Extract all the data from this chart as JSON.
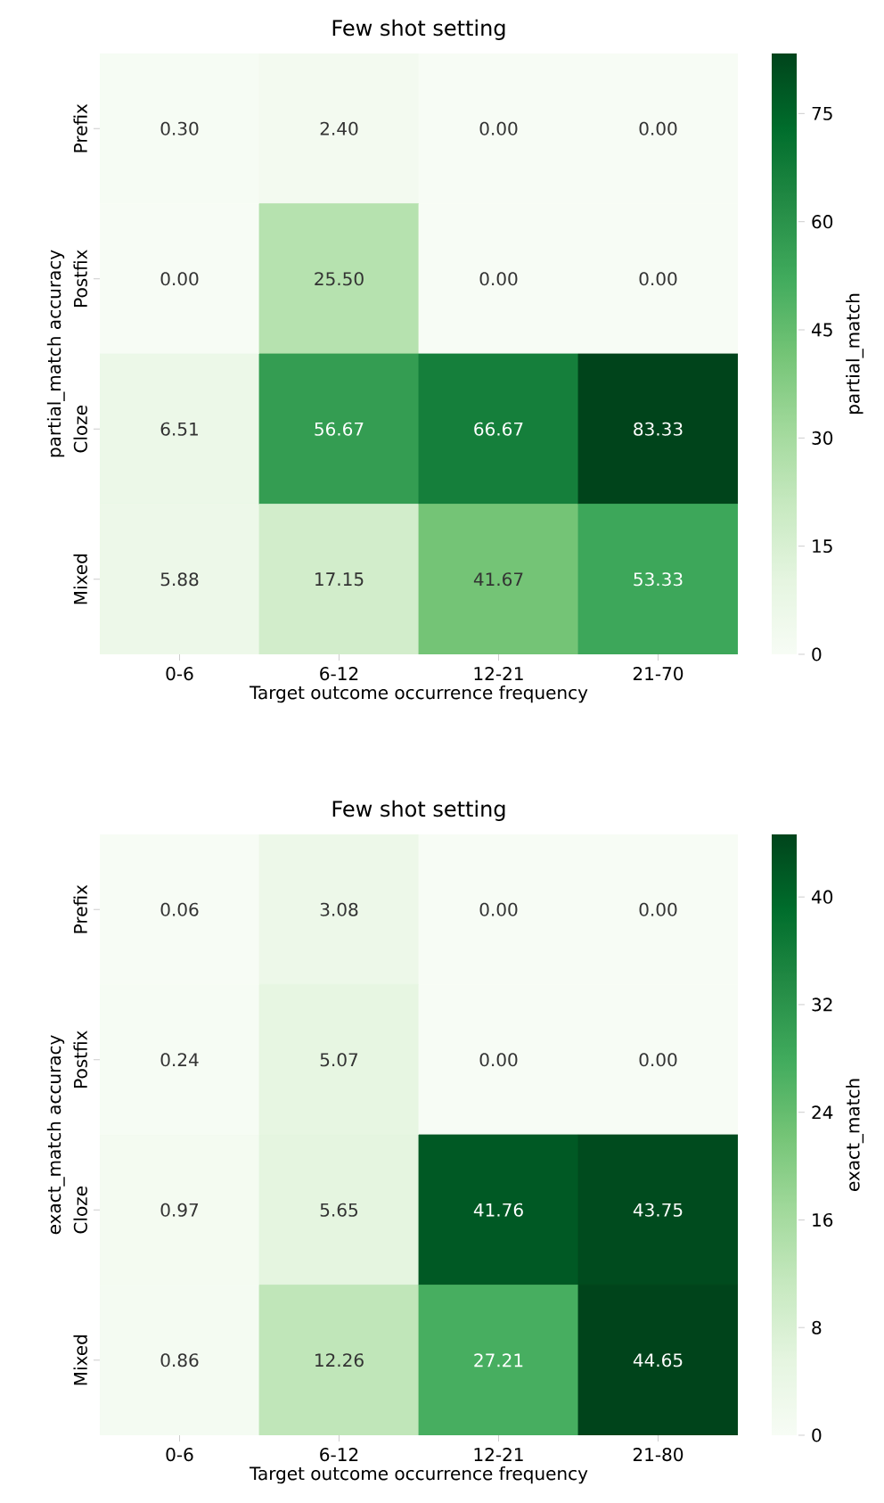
{
  "chart_data": [
    {
      "type": "heatmap",
      "title": "Few shot setting",
      "xlabel": "Target outcome occurrence frequency",
      "ylabel": "partial_match accuracy",
      "clabel": "partial_match",
      "categories": [
        "0-6",
        "6-12",
        "12-21",
        "21-70"
      ],
      "y_categories": [
        "Prefix",
        "Postfix",
        "Cloze",
        "Mixed"
      ],
      "cells": [
        [
          0.3,
          2.4,
          0.0,
          0.0
        ],
        [
          0.0,
          25.5,
          0.0,
          0.0
        ],
        [
          6.51,
          56.67,
          66.67,
          83.33
        ],
        [
          5.88,
          17.15,
          41.67,
          53.33
        ]
      ],
      "cell_labels": [
        [
          "0.30",
          "2.40",
          "0.00",
          "0.00"
        ],
        [
          "0.00",
          "25.50",
          "0.00",
          "0.00"
        ],
        [
          "6.51",
          "56.67",
          "66.67",
          "83.33"
        ],
        [
          "5.88",
          "17.15",
          "41.67",
          "53.33"
        ]
      ],
      "clim": [
        0,
        83.33
      ],
      "cticks": [
        0,
        15,
        30,
        45,
        60,
        75
      ]
    },
    {
      "type": "heatmap",
      "title": "Few shot setting",
      "xlabel": "Target outcome occurrence frequency",
      "ylabel": "exact_match accuracy",
      "clabel": "exact_match",
      "categories": [
        "0-6",
        "6-12",
        "12-21",
        "21-80"
      ],
      "y_categories": [
        "Prefix",
        "Postfix",
        "Cloze",
        "Mixed"
      ],
      "cells": [
        [
          0.06,
          3.08,
          0.0,
          0.0
        ],
        [
          0.24,
          5.07,
          0.0,
          0.0
        ],
        [
          0.97,
          5.65,
          41.76,
          43.75
        ],
        [
          0.86,
          12.26,
          27.21,
          44.65
        ]
      ],
      "cell_labels": [
        [
          "0.06",
          "3.08",
          "0.00",
          "0.00"
        ],
        [
          "0.24",
          "5.07",
          "0.00",
          "0.00"
        ],
        [
          "0.97",
          "5.65",
          "41.76",
          "43.75"
        ],
        [
          "0.86",
          "12.26",
          "27.21",
          "44.65"
        ]
      ],
      "clim": [
        0,
        44.65
      ],
      "cticks": [
        0,
        8,
        16,
        24,
        32,
        40
      ]
    }
  ]
}
